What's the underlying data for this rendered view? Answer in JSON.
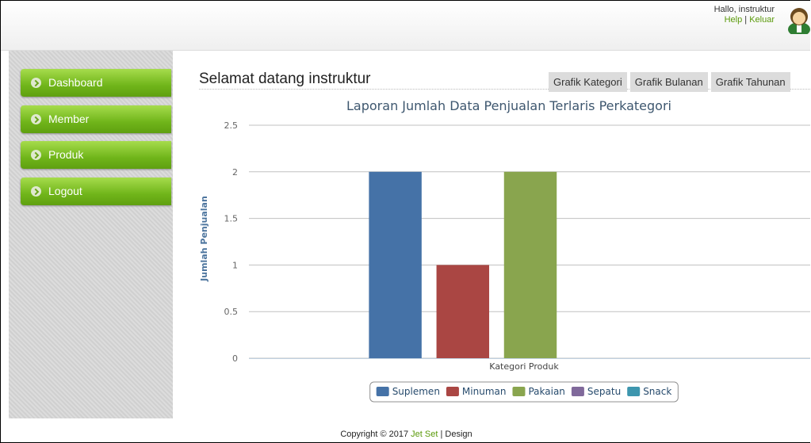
{
  "header": {
    "greeting": "Hallo, instruktur",
    "links": [
      "Help",
      "Keluar"
    ],
    "separator": "|"
  },
  "sidebar": {
    "menu": [
      "Dashboard",
      "Member",
      "Produk",
      "Logout"
    ]
  },
  "main": {
    "welcome": "Selamat datang instruktur",
    "tabs": [
      "Grafik Kategori",
      "Grafik Bulanan",
      "Grafik Tahunan"
    ]
  },
  "chart_data": {
    "type": "bar",
    "title": "Laporan Jumlah Data Penjualan Terlaris Perkategori",
    "x_label": "Kategori Produk",
    "y_label": "Jumlah Penjualan",
    "categories": [
      null
    ],
    "series": [
      {
        "name": "Suplemen",
        "color": "#4572a7",
        "values": [
          2
        ]
      },
      {
        "name": "Minuman",
        "color": "#aa4643",
        "values": [
          1
        ]
      },
      {
        "name": "Pakaian",
        "color": "#89a54e",
        "values": [
          2
        ]
      },
      {
        "name": "Sepatu",
        "color": "#80699b",
        "values": [
          0
        ]
      },
      {
        "name": "Snack",
        "color": "#3d96ae",
        "values": [
          0
        ]
      }
    ],
    "ylim": [
      0,
      2.5
    ],
    "yticks": [
      0,
      0.5,
      1,
      1.5,
      2,
      2.5
    ],
    "grid": true,
    "legend": "bottom"
  },
  "footer": {
    "text": "Copyright © 2017",
    "link": "Jet Set",
    "separator": "|",
    "suffix": "Design"
  }
}
